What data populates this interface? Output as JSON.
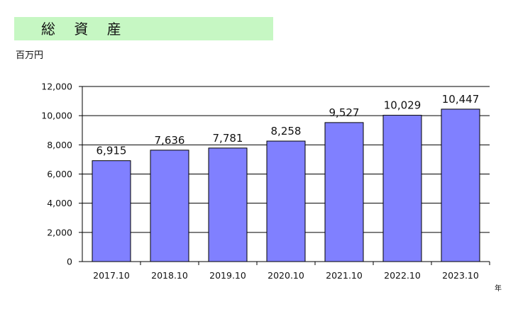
{
  "header": {
    "title": "総 資 産",
    "unit": "百万円"
  },
  "colors": {
    "title_background": "#c6f7c3",
    "bar_fill": "#8080ff",
    "bar_stroke": "#000000",
    "gridline": "#000000"
  },
  "chart_data": {
    "type": "bar",
    "title": "総 資 産",
    "ylabel": "百万円",
    "xlabel": "年",
    "categories": [
      "2017.10",
      "2018.10",
      "2019.10",
      "2020.10",
      "2021.10",
      "2022.10",
      "2023.10"
    ],
    "values": [
      6915,
      7636,
      7781,
      8258,
      9527,
      10029,
      10447
    ],
    "value_labels": [
      "6,915",
      "7,636",
      "7,781",
      "8,258",
      "9,527",
      "10,029",
      "10,447"
    ],
    "ylim": [
      0,
      12000
    ],
    "yticks": [
      0,
      2000,
      4000,
      6000,
      8000,
      10000,
      12000
    ],
    "ytick_labels": [
      "0",
      "2,000",
      "4,000",
      "6,000",
      "8,000",
      "10,000",
      "12,000"
    ],
    "grid": true,
    "legend": "none"
  }
}
